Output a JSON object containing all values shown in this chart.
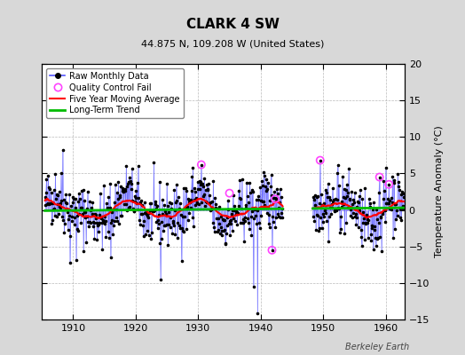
{
  "title": "CLARK 4 SW",
  "subtitle": "44.875 N, 109.208 W (United States)",
  "ylabel": "Temperature Anomaly (°C)",
  "watermark": "Berkeley Earth",
  "xlim": [
    1905.0,
    1963.0
  ],
  "ylim": [
    -15,
    20
  ],
  "yticks": [
    -15,
    -10,
    -5,
    0,
    5,
    10,
    15,
    20
  ],
  "xticks": [
    1910,
    1920,
    1930,
    1940,
    1950,
    1960
  ],
  "bg_color": "#d8d8d8",
  "plot_bg_color": "#ffffff",
  "grid_color": "#aaaaaa",
  "raw_line_color": "#5555ff",
  "raw_marker_color": "#000000",
  "moving_avg_color": "#ff0000",
  "trend_color": "#00bb00",
  "qc_fail_color": "#ff44ff",
  "seed": 42,
  "gap_start": 1943.5,
  "gap_end": 1948.3
}
